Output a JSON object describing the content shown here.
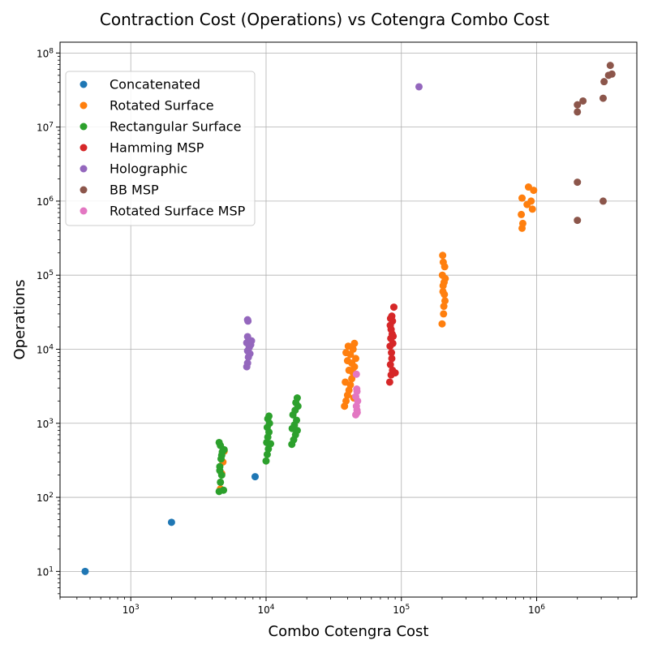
{
  "chart_data": {
    "type": "scatter",
    "title": "Contraction Cost (Operations) vs Cotengra Combo Cost",
    "xlabel": "Combo Cotengra Cost",
    "ylabel": "Operations",
    "xscale": "log",
    "yscale": "log",
    "xlim": [
      300,
      5500000
    ],
    "ylim": [
      4.5,
      140000000
    ],
    "x_ticks": [
      {
        "value": 1000,
        "base": "10",
        "exp": "3"
      },
      {
        "value": 10000,
        "base": "10",
        "exp": "4"
      },
      {
        "value": 100000,
        "base": "10",
        "exp": "5"
      },
      {
        "value": 1000000,
        "base": "10",
        "exp": "6"
      }
    ],
    "y_ticks": [
      {
        "value": 10,
        "base": "10",
        "exp": "1"
      },
      {
        "value": 100,
        "base": "10",
        "exp": "2"
      },
      {
        "value": 1000,
        "base": "10",
        "exp": "3"
      },
      {
        "value": 10000,
        "base": "10",
        "exp": "4"
      },
      {
        "value": 100000,
        "base": "10",
        "exp": "5"
      },
      {
        "value": 1000000,
        "base": "10",
        "exp": "6"
      },
      {
        "value": 10000000,
        "base": "10",
        "exp": "7"
      },
      {
        "value": 100000000,
        "base": "10",
        "exp": "8"
      }
    ],
    "grid": true,
    "legend_position": "upper-left",
    "series": [
      {
        "name": "Concatenated",
        "color": "#1f77b4",
        "points": [
          [
            460,
            10
          ],
          [
            2000,
            46
          ],
          [
            8300,
            190
          ]
        ]
      },
      {
        "name": "Rotated Surface",
        "color": "#ff7f0e",
        "points": [
          [
            4600,
            130
          ],
          [
            4700,
            210
          ],
          [
            4800,
            300
          ],
          [
            4900,
            420
          ],
          [
            38000,
            1700
          ],
          [
            39000,
            2000
          ],
          [
            40000,
            2400
          ],
          [
            41000,
            2800
          ],
          [
            42000,
            3300
          ],
          [
            43000,
            4000
          ],
          [
            44000,
            4800
          ],
          [
            45000,
            5800
          ],
          [
            40000,
            7000
          ],
          [
            42000,
            8500
          ],
          [
            44000,
            10000
          ],
          [
            45000,
            12000
          ],
          [
            39000,
            9000
          ],
          [
            43000,
            6500
          ],
          [
            41000,
            5200
          ],
          [
            38500,
            3600
          ],
          [
            44500,
            2200
          ],
          [
            46000,
            7500
          ],
          [
            40500,
            11000
          ],
          [
            200000,
            22000
          ],
          [
            205000,
            30000
          ],
          [
            210000,
            45000
          ],
          [
            203000,
            60000
          ],
          [
            207000,
            80000
          ],
          [
            201000,
            100000
          ],
          [
            209000,
            130000
          ],
          [
            204000,
            150000
          ],
          [
            202000,
            185000
          ],
          [
            206000,
            38000
          ],
          [
            208000,
            55000
          ],
          [
            203500,
            72000
          ],
          [
            211000,
            90000
          ],
          [
            780000,
            430000
          ],
          [
            790000,
            500000
          ],
          [
            770000,
            660000
          ],
          [
            780000,
            1100000
          ],
          [
            850000,
            900000
          ],
          [
            870000,
            1550000
          ],
          [
            930000,
            780000
          ],
          [
            950000,
            1400000
          ],
          [
            910000,
            1000000
          ]
        ]
      },
      {
        "name": "Rectangular Surface",
        "color": "#2ca02c",
        "points": [
          [
            4500,
            120
          ],
          [
            4600,
            160
          ],
          [
            4700,
            200
          ],
          [
            4550,
            260
          ],
          [
            4650,
            330
          ],
          [
            4750,
            410
          ],
          [
            4600,
            500
          ],
          [
            4500,
            550
          ],
          [
            4850,
            125
          ],
          [
            4900,
            440
          ],
          [
            4700,
            370
          ],
          [
            4550,
            230
          ],
          [
            10000,
            310
          ],
          [
            10200,
            380
          ],
          [
            10400,
            450
          ],
          [
            10100,
            550
          ],
          [
            10300,
            650
          ],
          [
            10500,
            760
          ],
          [
            10200,
            880
          ],
          [
            10600,
            1000
          ],
          [
            10300,
            1150
          ],
          [
            10500,
            1250
          ],
          [
            10800,
            530
          ],
          [
            15500,
            520
          ],
          [
            16000,
            600
          ],
          [
            16500,
            700
          ],
          [
            17000,
            800
          ],
          [
            16200,
            950
          ],
          [
            16800,
            1100
          ],
          [
            15800,
            1300
          ],
          [
            16400,
            1500
          ],
          [
            17200,
            1700
          ],
          [
            16600,
            1900
          ],
          [
            17000,
            2200
          ],
          [
            15600,
            850
          ]
        ]
      },
      {
        "name": "Hamming MSP",
        "color": "#d62728",
        "points": [
          [
            82000,
            3600
          ],
          [
            84000,
            4500
          ],
          [
            86000,
            5200
          ],
          [
            83000,
            6200
          ],
          [
            85000,
            7500
          ],
          [
            84500,
            9000
          ],
          [
            82500,
            11000
          ],
          [
            86500,
            12000
          ],
          [
            83500,
            14000
          ],
          [
            85500,
            16000
          ],
          [
            84000,
            18500
          ],
          [
            82800,
            21000
          ],
          [
            86000,
            24000
          ],
          [
            83200,
            26000
          ],
          [
            85000,
            28000
          ],
          [
            88000,
            37000
          ],
          [
            90000,
            4800
          ],
          [
            87000,
            15000
          ]
        ]
      },
      {
        "name": "Holographic",
        "color": "#9467bd",
        "points": [
          [
            7200,
            5800
          ],
          [
            7300,
            6500
          ],
          [
            7400,
            7800
          ],
          [
            7600,
            8700
          ],
          [
            7300,
            9500
          ],
          [
            7500,
            10500
          ],
          [
            7700,
            11500
          ],
          [
            7200,
            12200
          ],
          [
            7800,
            13000
          ],
          [
            7300,
            14800
          ],
          [
            7350,
            24000
          ],
          [
            7300,
            25000
          ],
          [
            135000,
            35000000
          ]
        ]
      },
      {
        "name": "BB MSP",
        "color": "#8c564b",
        "points": [
          [
            2000000,
            550000
          ],
          [
            2000000,
            1800000
          ],
          [
            3100000,
            1000000
          ],
          [
            2000000,
            16000000
          ],
          [
            2000000,
            20000000
          ],
          [
            2200000,
            22500000
          ],
          [
            3100000,
            24500000
          ],
          [
            3150000,
            41000000
          ],
          [
            3400000,
            50000000
          ],
          [
            3600000,
            52000000
          ],
          [
            3500000,
            68000000
          ]
        ]
      },
      {
        "name": "Rotated Surface MSP",
        "color": "#e377c2",
        "points": [
          [
            46000,
            1300
          ],
          [
            47000,
            1500
          ],
          [
            46500,
            1700
          ],
          [
            47500,
            2000
          ],
          [
            46000,
            2300
          ],
          [
            47000,
            2700
          ],
          [
            46800,
            2900
          ],
          [
            46500,
            4600
          ],
          [
            47200,
            1400
          ]
        ]
      }
    ]
  }
}
